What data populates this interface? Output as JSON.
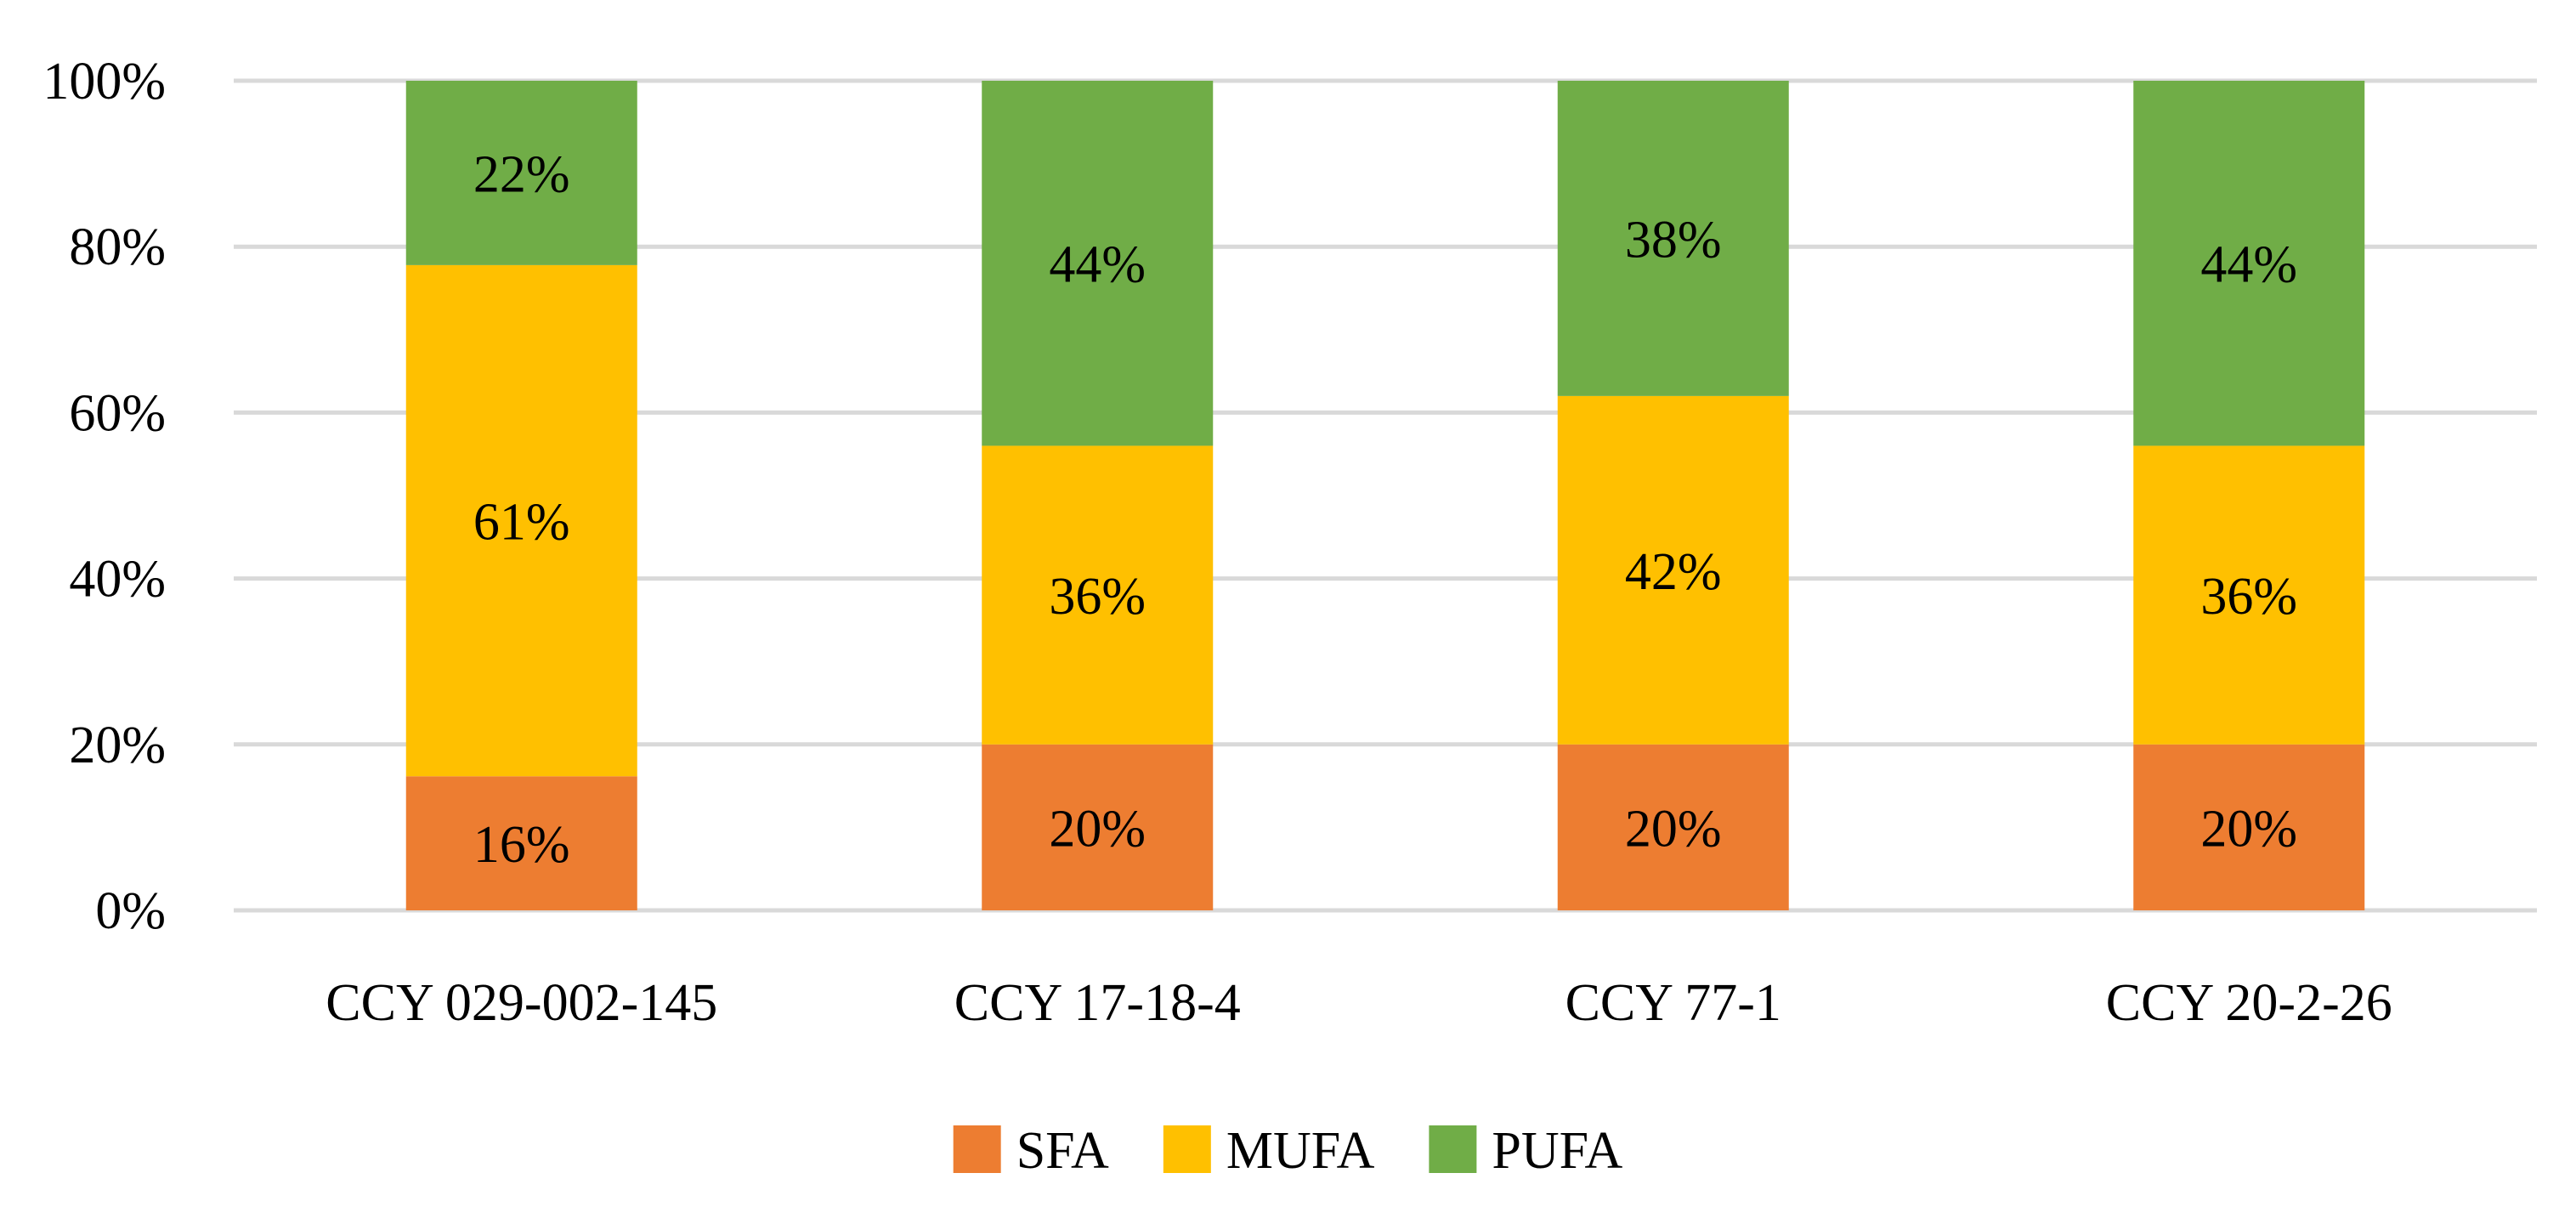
{
  "chart_data": {
    "type": "bar",
    "stacked": true,
    "percent": true,
    "categories": [
      "CCY 029-002-145",
      "CCY 17-18-4",
      "CCY 77-1",
      "CCY 20-2-26"
    ],
    "series": [
      {
        "name": "SFA",
        "color": "#ED7D31",
        "values": [
          16,
          20,
          20,
          20
        ],
        "labels": [
          "16%",
          "20%",
          "20%",
          "20%"
        ]
      },
      {
        "name": "MUFA",
        "color": "#FFC000",
        "values": [
          61,
          36,
          42,
          36
        ],
        "labels": [
          "61%",
          "36%",
          "42%",
          "36%"
        ]
      },
      {
        "name": "PUFA",
        "color": "#70AD47",
        "values": [
          22,
          44,
          38,
          44
        ],
        "labels": [
          "22%",
          "44%",
          "38%",
          "44%"
        ]
      }
    ],
    "yticks": [
      "0%",
      "20%",
      "40%",
      "60%",
      "80%",
      "100%"
    ],
    "ylim": [
      0,
      100
    ],
    "grid": true,
    "legend": "bottom",
    "title": "",
    "xlabel": "",
    "ylabel": ""
  }
}
